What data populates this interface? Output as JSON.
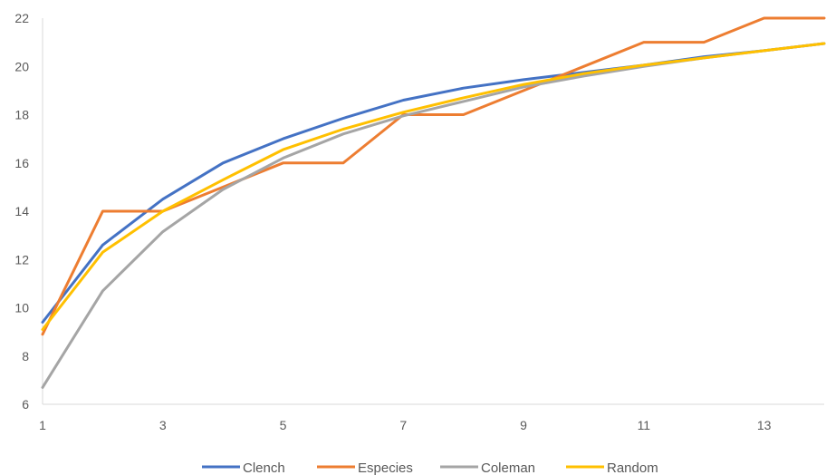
{
  "chart_data": {
    "type": "line",
    "title": "",
    "xlabel": "",
    "ylabel": "",
    "xlim": [
      1,
      14
    ],
    "ylim": [
      6,
      22
    ],
    "x_ticks": [
      1,
      3,
      5,
      7,
      9,
      11,
      13
    ],
    "y_ticks": [
      6,
      8,
      10,
      12,
      14,
      16,
      18,
      20,
      22
    ],
    "grid": false,
    "legend_position": "bottom",
    "x": [
      1,
      2,
      3,
      4,
      5,
      6,
      7,
      8,
      9,
      10,
      11,
      12,
      13,
      14
    ],
    "series": [
      {
        "name": "Clench",
        "color": "#4472C4",
        "values": [
          9.4,
          12.6,
          14.5,
          16.0,
          17.0,
          17.85,
          18.6,
          19.1,
          19.45,
          19.75,
          20.05,
          20.4,
          20.65,
          20.95
        ]
      },
      {
        "name": "Especies",
        "color": "#ED7D31",
        "values": [
          8.9,
          14.0,
          14.0,
          15.0,
          16.0,
          16.0,
          18.0,
          18.0,
          19.0,
          20.0,
          21.0,
          21.0,
          22.0,
          22.0
        ]
      },
      {
        "name": "Coleman",
        "color": "#A5A5A5",
        "values": [
          6.7,
          10.7,
          13.15,
          14.9,
          16.2,
          17.2,
          17.95,
          18.55,
          19.15,
          19.6,
          20.0,
          20.35,
          20.65,
          20.95
        ]
      },
      {
        "name": "Random",
        "color": "#FFC000",
        "values": [
          9.1,
          12.3,
          14.0,
          15.3,
          16.55,
          17.4,
          18.1,
          18.7,
          19.25,
          19.7,
          20.05,
          20.35,
          20.65,
          20.95
        ]
      }
    ]
  }
}
